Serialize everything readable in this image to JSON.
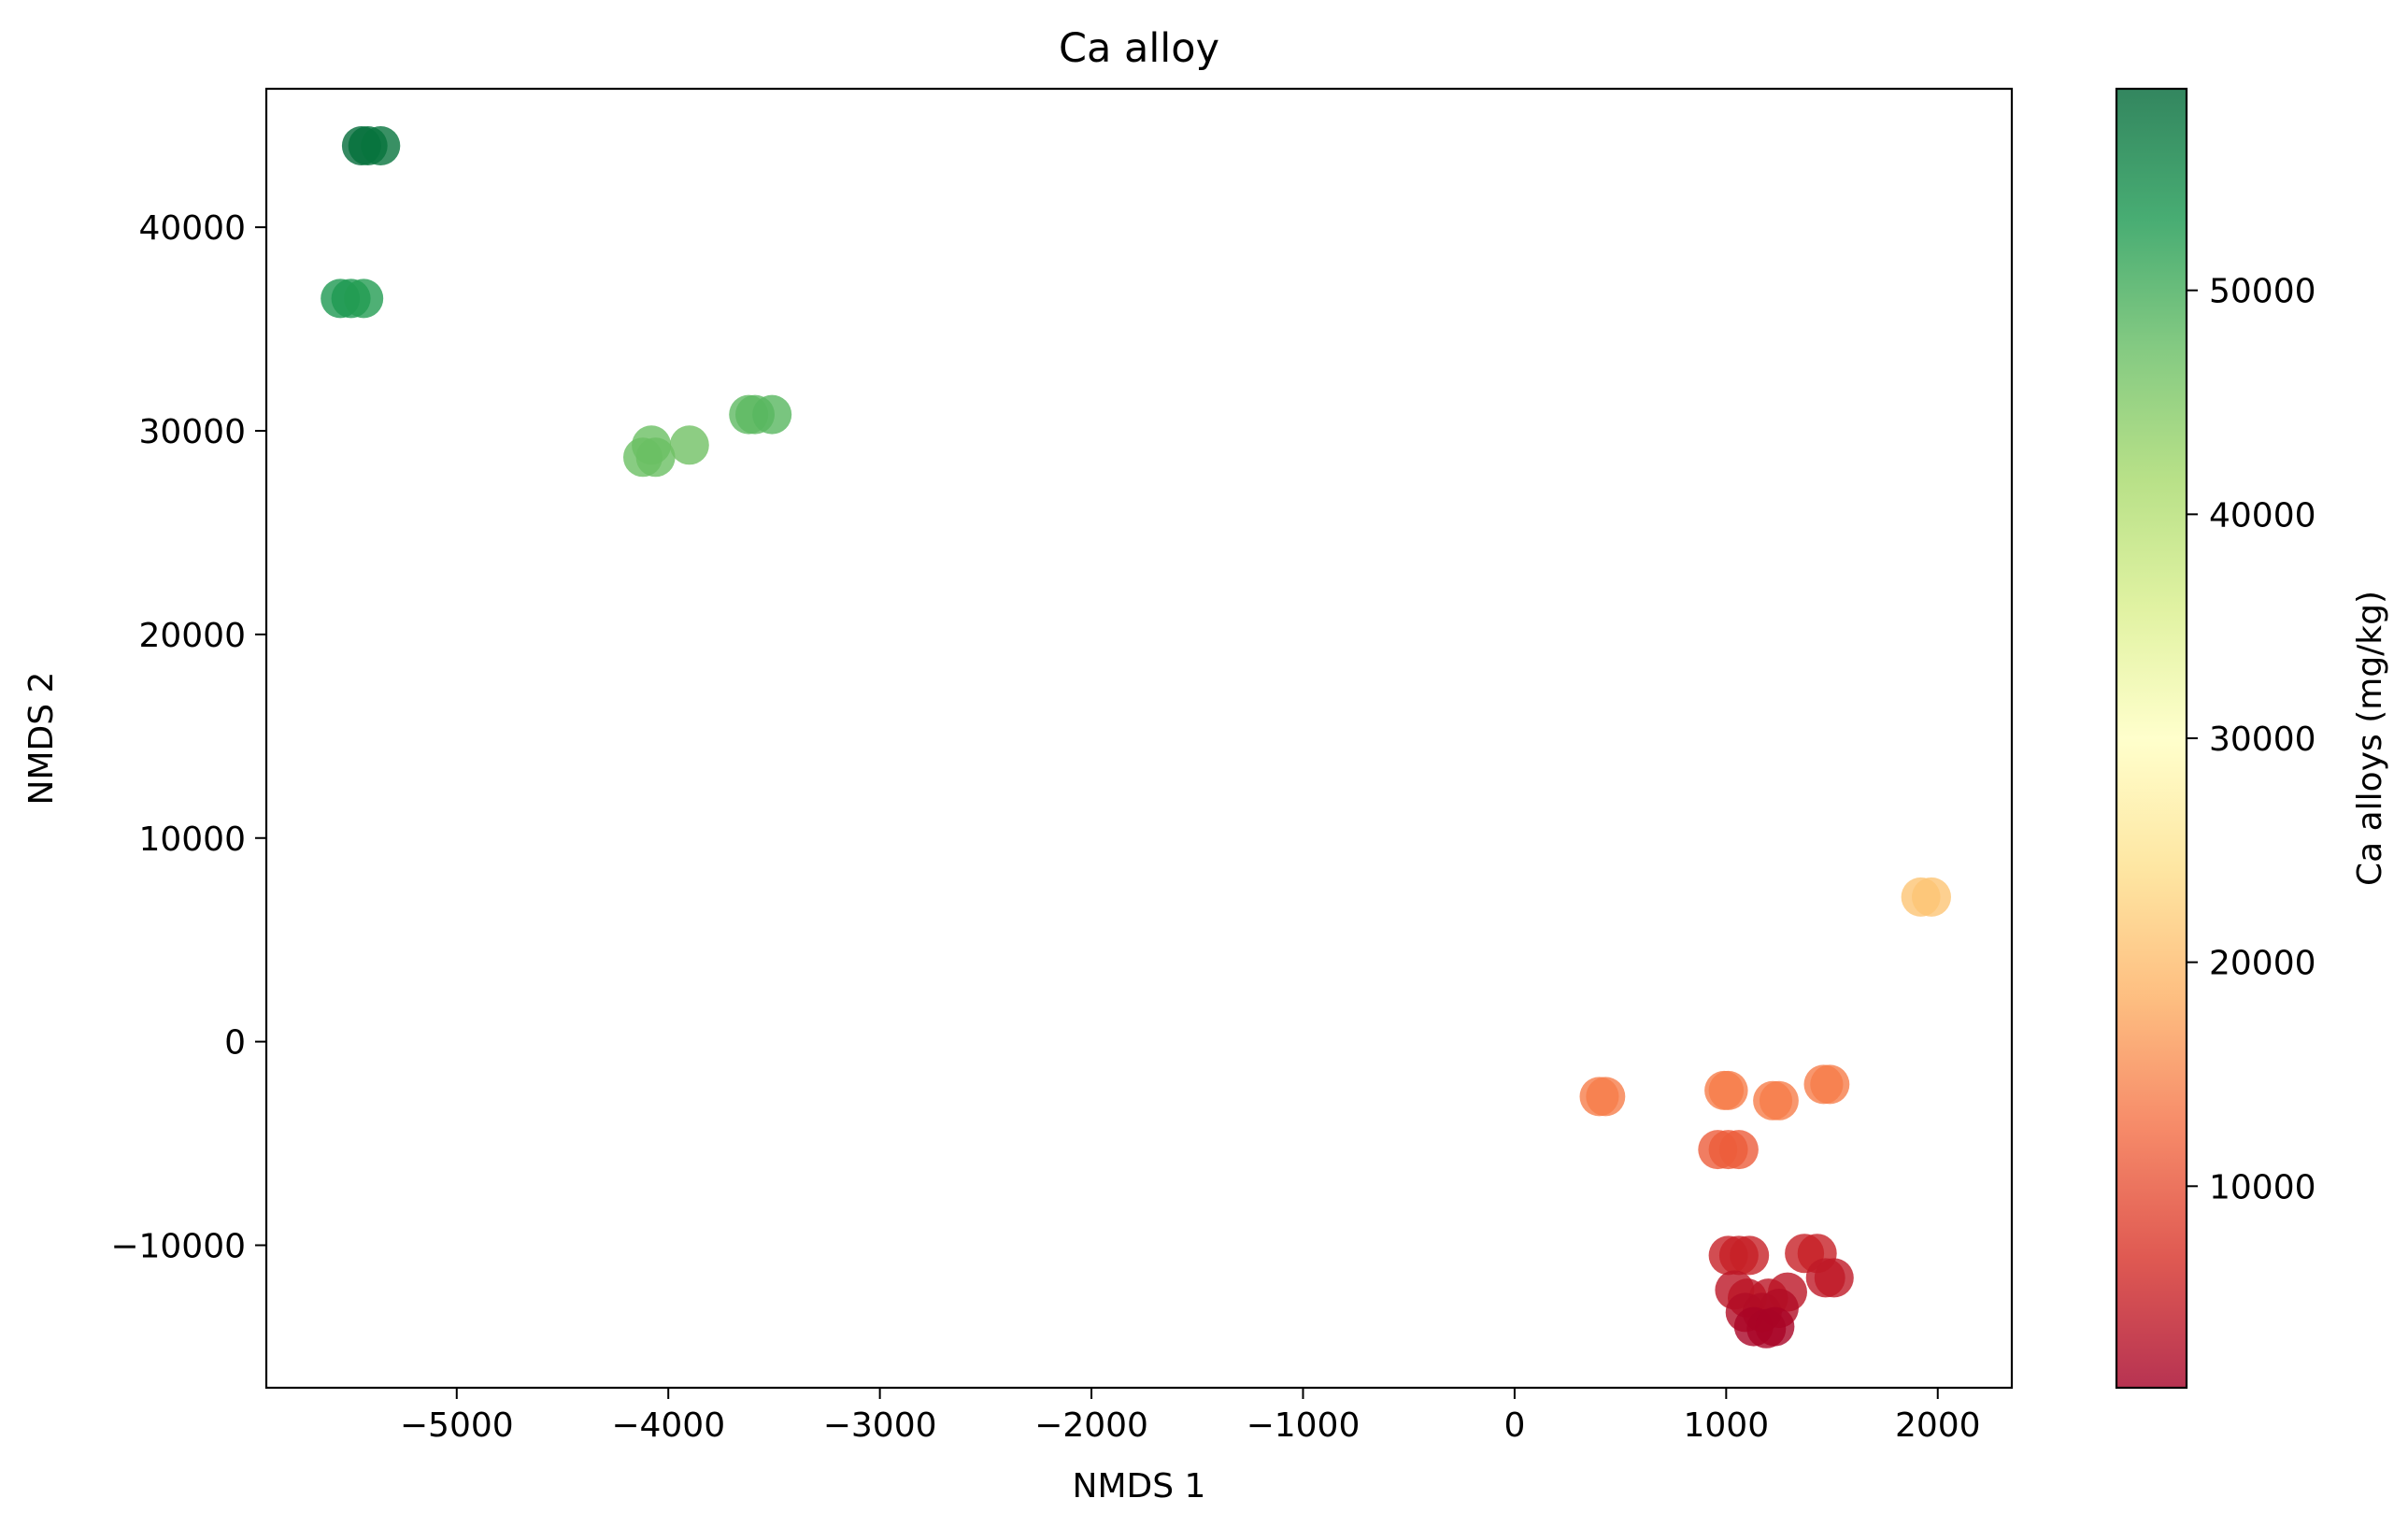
{
  "chart_data": {
    "type": "scatter",
    "title": "Ca alloy",
    "xlabel": "NMDS 1",
    "ylabel": "NMDS 2",
    "xlim": [
      -5900,
      2350
    ],
    "ylim": [
      -17000,
      46800
    ],
    "x_ticks": [
      -5000,
      -4000,
      -3000,
      -2000,
      -1000,
      0,
      1000,
      2000
    ],
    "x_tick_labels": [
      "−5000",
      "−4000",
      "−3000",
      "−2000",
      "−1000",
      "0",
      "1000",
      "2000"
    ],
    "y_ticks": [
      -10000,
      0,
      10000,
      20000,
      30000,
      40000
    ],
    "y_tick_labels": [
      "−10000",
      "0",
      "10000",
      "20000",
      "30000",
      "40000"
    ],
    "grid": false,
    "legend": "none",
    "colorbar": {
      "label": "Ca alloys (mg/kg)",
      "colormap": "RdYlGn",
      "range": [
        1000,
        59000
      ],
      "ticks": [
        10000,
        20000,
        30000,
        40000,
        50000
      ],
      "tick_labels": [
        "10000",
        "20000",
        "30000",
        "40000",
        "50000"
      ]
    },
    "marker_alpha": 0.8,
    "points": [
      {
        "x": -5450,
        "y": 44000,
        "c": 58500
      },
      {
        "x": -5420,
        "y": 44000,
        "c": 58000
      },
      {
        "x": -5360,
        "y": 44000,
        "c": 57500
      },
      {
        "x": -5550,
        "y": 36500,
        "c": 53000
      },
      {
        "x": -5500,
        "y": 36500,
        "c": 53000
      },
      {
        "x": -5440,
        "y": 36500,
        "c": 52500
      },
      {
        "x": -4120,
        "y": 28700,
        "c": 47000
      },
      {
        "x": -4080,
        "y": 29300,
        "c": 47000
      },
      {
        "x": -4060,
        "y": 28700,
        "c": 47000
      },
      {
        "x": -3900,
        "y": 29300,
        "c": 46500
      },
      {
        "x": -3620,
        "y": 30800,
        "c": 48000
      },
      {
        "x": -3590,
        "y": 30800,
        "c": 48000
      },
      {
        "x": -3510,
        "y": 30800,
        "c": 48500
      },
      {
        "x": 1920,
        "y": 7100,
        "c": 21000
      },
      {
        "x": 1970,
        "y": 7100,
        "c": 21000
      },
      {
        "x": 400,
        "y": -2700,
        "c": 14000
      },
      {
        "x": 430,
        "y": -2700,
        "c": 14000
      },
      {
        "x": 990,
        "y": -2400,
        "c": 14000
      },
      {
        "x": 1010,
        "y": -2400,
        "c": 14000
      },
      {
        "x": 1220,
        "y": -2900,
        "c": 14000
      },
      {
        "x": 1250,
        "y": -2900,
        "c": 14000
      },
      {
        "x": 1460,
        "y": -2100,
        "c": 14000
      },
      {
        "x": 1490,
        "y": -2100,
        "c": 14000
      },
      {
        "x": 960,
        "y": -5300,
        "c": 11000
      },
      {
        "x": 1010,
        "y": -5300,
        "c": 11000
      },
      {
        "x": 1060,
        "y": -5300,
        "c": 11000
      },
      {
        "x": 1010,
        "y": -10500,
        "c": 5000
      },
      {
        "x": 1060,
        "y": -10500,
        "c": 5000
      },
      {
        "x": 1110,
        "y": -10500,
        "c": 5000
      },
      {
        "x": 1370,
        "y": -10400,
        "c": 5000
      },
      {
        "x": 1430,
        "y": -10400,
        "c": 5000
      },
      {
        "x": 1470,
        "y": -11600,
        "c": 4000
      },
      {
        "x": 1510,
        "y": -11600,
        "c": 4000
      },
      {
        "x": 1040,
        "y": -12200,
        "c": 3500
      },
      {
        "x": 1100,
        "y": -12600,
        "c": 3500
      },
      {
        "x": 1200,
        "y": -12600,
        "c": 3500
      },
      {
        "x": 1290,
        "y": -12300,
        "c": 3500
      },
      {
        "x": 1090,
        "y": -13300,
        "c": 2500
      },
      {
        "x": 1170,
        "y": -13300,
        "c": 2500
      },
      {
        "x": 1250,
        "y": -13100,
        "c": 2500
      },
      {
        "x": 1130,
        "y": -14000,
        "c": 1500
      },
      {
        "x": 1190,
        "y": -14100,
        "c": 1500
      },
      {
        "x": 1230,
        "y": -14000,
        "c": 1500
      }
    ]
  }
}
